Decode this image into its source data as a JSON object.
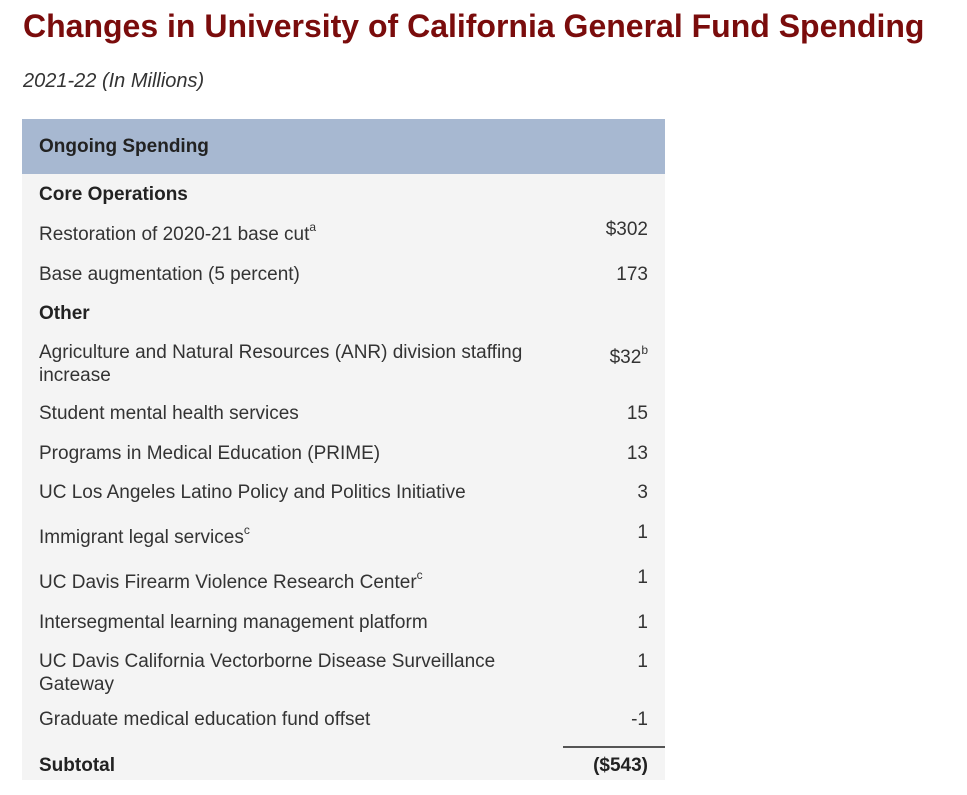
{
  "title": "Changes in University of California General Fund Spending",
  "subtitle": "2021-22 (In Millions)",
  "table": {
    "header": "Ongoing Spending",
    "sections": [
      {
        "name": "Core Operations"
      },
      {
        "name": "Other"
      }
    ],
    "rows": [
      {
        "label": "Restoration of 2020-21 base cut",
        "sup": "a",
        "value": "$302",
        "value_sup": ""
      },
      {
        "label": "Base augmentation (5 percent)",
        "sup": "",
        "value": "173",
        "value_sup": ""
      },
      {
        "label": "Agriculture and Natural Resources (ANR) division staffing increase",
        "sup": "",
        "value": "$32",
        "value_sup": "b"
      },
      {
        "label": "Student mental health services",
        "sup": "",
        "value": "15",
        "value_sup": ""
      },
      {
        "label": "Programs in Medical Education (PRIME)",
        "sup": "",
        "value": "13",
        "value_sup": ""
      },
      {
        "label": "UC Los Angeles Latino Policy and Politics Initiative",
        "sup": "",
        "value": "3",
        "value_sup": ""
      },
      {
        "label": "Immigrant legal services",
        "sup": "c",
        "value": "1",
        "value_sup": ""
      },
      {
        "label": "UC Davis Firearm Violence Research Center",
        "sup": "c",
        "value": "1",
        "value_sup": ""
      },
      {
        "label": "Intersegmental learning management platform",
        "sup": "",
        "value": "1",
        "value_sup": ""
      },
      {
        "label": "UC Davis California Vectorborne Disease Surveillance Gateway",
        "sup": "",
        "value": "1",
        "value_sup": ""
      },
      {
        "label": "Graduate medical education fund offset",
        "sup": "",
        "value": "-1",
        "value_sup": ""
      }
    ],
    "subtotal": {
      "label": "Subtotal",
      "value": "($543)"
    }
  }
}
